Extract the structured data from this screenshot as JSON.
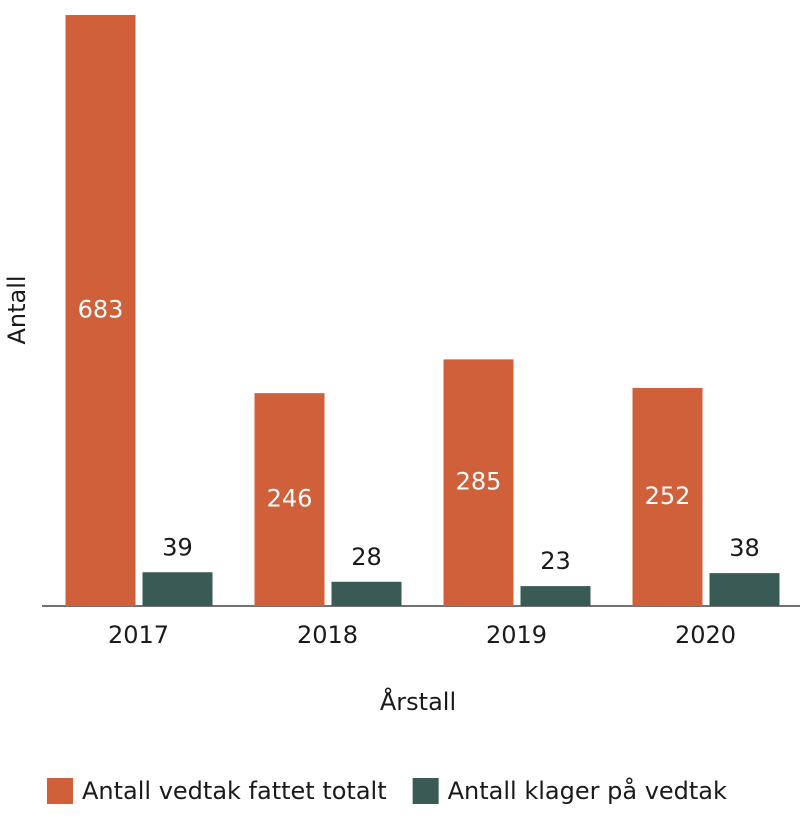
{
  "chart_data": {
    "type": "bar",
    "x_label": "Årstall",
    "y_label": "Antall",
    "categories": [
      "2017",
      "2018",
      "2019",
      "2020"
    ],
    "series": [
      {
        "name": "Antall vedtak fattet totalt",
        "color": "#d0603a",
        "values": [
          683,
          246,
          285,
          252
        ]
      },
      {
        "name": "Antall klager på vedtak",
        "color": "#3a5a55",
        "values": [
          39,
          28,
          23,
          38
        ]
      }
    ],
    "ylim": [
      0,
      683
    ],
    "legend": "bottom"
  }
}
